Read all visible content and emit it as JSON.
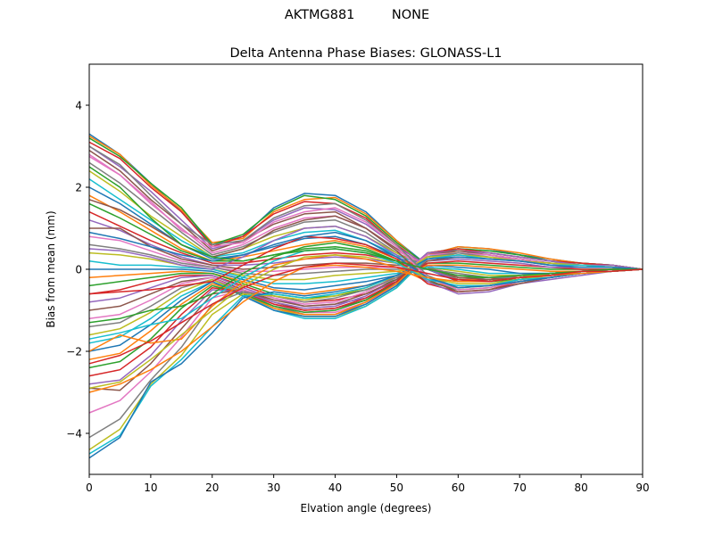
{
  "figure": {
    "suptitle": "AKTMG881         NONE"
  },
  "chart_data": {
    "type": "line",
    "title": "Delta Antenna Phase Biases: GLONASS-L1",
    "xlabel": "Elvation angle (degrees)",
    "ylabel": "Bias from mean (mm)",
    "xlim": [
      0,
      90
    ],
    "ylim": [
      -5,
      5
    ],
    "xticks": [
      0,
      10,
      20,
      30,
      40,
      50,
      60,
      70,
      80,
      90
    ],
    "yticks": [
      -4,
      -2,
      0,
      2,
      4
    ],
    "grid": false,
    "legend": "none",
    "x": [
      0,
      5,
      10,
      15,
      20,
      25,
      30,
      35,
      40,
      45,
      50,
      55,
      60,
      65,
      70,
      75,
      80,
      85,
      90
    ],
    "colors": [
      "#1f77b4",
      "#ff7f0e",
      "#2ca02c",
      "#d62728",
      "#9467bd",
      "#8c564b",
      "#e377c2",
      "#7f7f7f",
      "#bcbd22",
      "#17becf"
    ],
    "series": [
      {
        "values": [
          3.3,
          2.8,
          2.1,
          1.4,
          0.6,
          0.8,
          1.5,
          1.85,
          1.8,
          1.4,
          0.7,
          0.1,
          -0.3,
          -0.3,
          -0.2,
          -0.1,
          -0.05,
          -0.05,
          0
        ]
      },
      {
        "values": [
          3.25,
          2.8,
          2.05,
          1.45,
          0.65,
          0.75,
          1.4,
          1.7,
          1.75,
          1.35,
          0.7,
          0.05,
          -0.3,
          -0.25,
          -0.2,
          -0.15,
          -0.05,
          -0.05,
          0
        ]
      },
      {
        "values": [
          3.2,
          2.75,
          2.1,
          1.5,
          0.6,
          0.85,
          1.45,
          1.8,
          1.7,
          1.3,
          0.65,
          0.1,
          -0.25,
          -0.3,
          -0.25,
          -0.1,
          -0.05,
          0,
          0
        ]
      },
      {
        "values": [
          3.1,
          2.7,
          2.0,
          1.4,
          0.55,
          0.8,
          1.35,
          1.65,
          1.6,
          1.25,
          0.6,
          0.05,
          -0.3,
          -0.3,
          -0.2,
          -0.1,
          -0.1,
          -0.05,
          0
        ]
      },
      {
        "values": [
          3.0,
          2.5,
          1.9,
          1.2,
          0.5,
          0.7,
          1.2,
          1.5,
          1.45,
          1.1,
          0.55,
          0.1,
          -0.2,
          -0.25,
          -0.2,
          -0.15,
          -0.05,
          -0.05,
          0
        ]
      },
      {
        "values": [
          2.9,
          2.4,
          1.7,
          1.1,
          0.45,
          0.7,
          1.1,
          1.35,
          1.4,
          1.0,
          0.5,
          0.05,
          -0.25,
          -0.3,
          -0.2,
          -0.1,
          -0.1,
          -0.05,
          0
        ]
      },
      {
        "values": [
          2.75,
          2.3,
          1.6,
          1.0,
          0.4,
          0.6,
          1.0,
          1.25,
          1.3,
          1.0,
          0.45,
          0.1,
          -0.2,
          -0.25,
          -0.15,
          -0.1,
          -0.05,
          -0.05,
          0
        ]
      },
      {
        "values": [
          2.6,
          2.1,
          1.5,
          0.9,
          0.35,
          0.55,
          0.9,
          1.15,
          1.2,
          0.9,
          0.4,
          0.05,
          -0.2,
          -0.2,
          -0.2,
          -0.1,
          -0.05,
          0,
          0
        ]
      },
      {
        "values": [
          2.4,
          1.9,
          1.3,
          0.8,
          0.3,
          0.5,
          0.8,
          1.0,
          1.05,
          0.8,
          0.4,
          0.0,
          -0.25,
          -0.3,
          -0.15,
          -0.1,
          -0.05,
          -0.05,
          0
        ]
      },
      {
        "values": [
          2.2,
          1.7,
          1.2,
          0.7,
          0.3,
          0.4,
          0.7,
          0.9,
          0.95,
          0.7,
          0.35,
          0.05,
          -0.2,
          -0.25,
          -0.2,
          -0.1,
          -0.1,
          -0.05,
          0
        ]
      },
      {
        "values": [
          2.0,
          1.6,
          1.1,
          0.6,
          0.25,
          0.35,
          0.55,
          0.75,
          0.8,
          0.6,
          0.3,
          0.0,
          -0.3,
          -0.3,
          -0.2,
          -0.15,
          -0.05,
          -0.05,
          0
        ]
      },
      {
        "values": [
          1.8,
          1.4,
          0.95,
          0.5,
          0.2,
          0.3,
          0.45,
          0.6,
          0.7,
          0.55,
          0.25,
          0.05,
          -0.25,
          -0.25,
          -0.15,
          -0.1,
          -0.05,
          0,
          0
        ]
      },
      {
        "values": [
          1.6,
          1.25,
          0.85,
          0.45,
          0.2,
          0.2,
          0.35,
          0.5,
          0.55,
          0.45,
          0.2,
          0.0,
          -0.2,
          -0.2,
          -0.2,
          -0.1,
          -0.05,
          -0.05,
          0
        ]
      },
      {
        "values": [
          1.4,
          1.05,
          0.7,
          0.4,
          0.15,
          0.15,
          0.25,
          0.35,
          0.4,
          0.35,
          0.2,
          0.05,
          -0.3,
          -0.25,
          -0.15,
          -0.1,
          -0.1,
          -0.05,
          0
        ]
      },
      {
        "values": [
          1.2,
          0.95,
          0.6,
          0.3,
          0.1,
          0.1,
          0.15,
          0.25,
          0.3,
          0.25,
          0.15,
          0.0,
          -0.25,
          -0.3,
          -0.2,
          -0.15,
          -0.05,
          -0.05,
          0
        ]
      },
      {
        "values": [
          1.0,
          1.0,
          0.55,
          0.25,
          0.1,
          0.0,
          0.05,
          0.1,
          0.15,
          0.15,
          0.1,
          0.05,
          -0.2,
          -0.25,
          -0.2,
          -0.1,
          -0.05,
          0,
          0
        ]
      },
      {
        "values": [
          0.8,
          0.7,
          0.45,
          0.2,
          0.05,
          -0.05,
          -0.05,
          0.0,
          0.05,
          0.05,
          0.05,
          0.0,
          -0.15,
          -0.2,
          -0.15,
          -0.1,
          -0.05,
          -0.05,
          0
        ]
      },
      {
        "values": [
          0.6,
          0.5,
          0.35,
          0.15,
          0.05,
          -0.1,
          -0.15,
          -0.1,
          -0.05,
          0.0,
          0.0,
          0.0,
          -0.1,
          -0.2,
          -0.2,
          -0.1,
          -0.1,
          -0.05,
          0
        ]
      },
      {
        "values": [
          0.4,
          0.35,
          0.25,
          0.1,
          0.0,
          -0.15,
          -0.25,
          -0.25,
          -0.15,
          -0.1,
          -0.05,
          0.05,
          -0.05,
          -0.15,
          -0.15,
          -0.15,
          -0.05,
          -0.05,
          0
        ]
      },
      {
        "values": [
          0.2,
          0.1,
          0.1,
          0.05,
          0.0,
          -0.2,
          -0.35,
          -0.35,
          -0.3,
          -0.2,
          -0.1,
          0.05,
          0.0,
          -0.1,
          -0.1,
          -0.1,
          -0.05,
          0,
          0
        ]
      },
      {
        "values": [
          0.0,
          0.0,
          0.0,
          0.0,
          -0.05,
          -0.25,
          -0.45,
          -0.5,
          -0.4,
          -0.3,
          -0.15,
          0.1,
          0.05,
          0.0,
          -0.1,
          -0.1,
          -0.05,
          -0.05,
          0
        ]
      },
      {
        "values": [
          -0.2,
          -0.15,
          -0.1,
          -0.05,
          -0.1,
          -0.3,
          -0.5,
          -0.6,
          -0.5,
          -0.4,
          -0.2,
          0.1,
          0.1,
          0.05,
          0.0,
          -0.05,
          -0.05,
          -0.05,
          0
        ]
      },
      {
        "values": [
          -0.4,
          -0.3,
          -0.2,
          -0.1,
          -0.1,
          -0.35,
          -0.6,
          -0.7,
          -0.65,
          -0.5,
          -0.25,
          0.15,
          0.15,
          0.1,
          0.05,
          0.0,
          0.0,
          0,
          0
        ]
      },
      {
        "values": [
          -0.6,
          -0.5,
          -0.3,
          -0.15,
          -0.15,
          -0.4,
          -0.65,
          -0.8,
          -0.75,
          -0.6,
          -0.3,
          0.15,
          0.2,
          0.15,
          0.1,
          0.05,
          0.0,
          0,
          0
        ]
      },
      {
        "values": [
          -0.8,
          -0.7,
          -0.45,
          -0.2,
          -0.15,
          -0.45,
          -0.7,
          -0.9,
          -0.85,
          -0.7,
          -0.35,
          0.2,
          0.25,
          0.2,
          0.15,
          0.05,
          0.05,
          0.05,
          0
        ]
      },
      {
        "values": [
          -1.0,
          -0.9,
          -0.6,
          -0.3,
          -0.2,
          -0.5,
          -0.8,
          -1.0,
          -0.95,
          -0.75,
          -0.35,
          0.2,
          0.3,
          0.25,
          0.2,
          0.1,
          0.05,
          0.05,
          0
        ]
      },
      {
        "values": [
          -1.2,
          -1.1,
          -0.75,
          -0.35,
          -0.2,
          -0.55,
          -0.85,
          -1.05,
          -1.05,
          -0.8,
          -0.4,
          0.25,
          0.35,
          0.3,
          0.25,
          0.15,
          0.1,
          0.05,
          0
        ]
      },
      {
        "values": [
          -1.4,
          -1.3,
          -0.9,
          -0.45,
          -0.25,
          -0.55,
          -0.9,
          -1.1,
          -1.1,
          -0.85,
          -0.4,
          0.25,
          0.4,
          0.35,
          0.25,
          0.15,
          0.1,
          0.05,
          0
        ]
      },
      {
        "values": [
          -1.6,
          -1.45,
          -1.05,
          -0.55,
          -0.25,
          -0.6,
          -0.95,
          -1.15,
          -1.15,
          -0.9,
          -0.45,
          0.3,
          0.45,
          0.4,
          0.3,
          0.2,
          0.1,
          0.1,
          0
        ]
      },
      {
        "values": [
          -1.8,
          -1.65,
          -1.2,
          -0.65,
          -0.3,
          -0.6,
          -1.0,
          -1.2,
          -1.2,
          -0.9,
          -0.45,
          0.3,
          0.5,
          0.45,
          0.35,
          0.2,
          0.15,
          0.1,
          0
        ]
      },
      {
        "values": [
          -2.0,
          -1.85,
          -1.35,
          -0.75,
          -0.3,
          -0.65,
          -1.0,
          -1.15,
          -1.15,
          -0.85,
          -0.4,
          0.35,
          0.55,
          0.5,
          0.35,
          0.25,
          0.15,
          0.1,
          0
        ]
      },
      {
        "values": [
          -2.2,
          -2.05,
          -1.5,
          -0.85,
          -0.35,
          -0.6,
          -0.95,
          -1.1,
          -1.1,
          -0.8,
          -0.35,
          0.35,
          0.55,
          0.5,
          0.4,
          0.25,
          0.15,
          0.1,
          0
        ]
      },
      {
        "values": [
          -2.4,
          -2.25,
          -1.7,
          -0.95,
          -0.4,
          -0.6,
          -0.9,
          -1.05,
          -1.0,
          -0.75,
          -0.3,
          0.4,
          0.5,
          0.45,
          0.35,
          0.2,
          0.15,
          0.1,
          0
        ]
      },
      {
        "values": [
          -2.6,
          -2.45,
          -1.9,
          -1.1,
          -0.45,
          -0.55,
          -0.85,
          -1.0,
          -0.95,
          -0.7,
          -0.3,
          0.4,
          0.5,
          0.4,
          0.3,
          0.2,
          0.15,
          0.1,
          0
        ]
      },
      {
        "values": [
          -2.8,
          -2.7,
          -2.1,
          -1.25,
          -0.5,
          -0.55,
          -0.8,
          -0.95,
          -0.9,
          -0.65,
          -0.25,
          0.4,
          0.45,
          0.4,
          0.3,
          0.2,
          0.1,
          0.1,
          0
        ]
      },
      {
        "values": [
          -2.9,
          -2.95,
          -2.3,
          -1.45,
          -0.6,
          -0.5,
          -0.75,
          -0.9,
          -0.85,
          -0.6,
          -0.25,
          0.35,
          0.45,
          0.35,
          0.25,
          0.15,
          0.1,
          0.05,
          0
        ]
      },
      {
        "values": [
          -3.5,
          -3.2,
          -2.5,
          -1.65,
          -0.7,
          -0.5,
          -0.7,
          -0.85,
          -0.8,
          -0.55,
          -0.2,
          0.35,
          0.4,
          0.35,
          0.25,
          0.15,
          0.1,
          0.05,
          0
        ]
      },
      {
        "values": [
          -4.1,
          -3.65,
          -2.7,
          -1.9,
          -0.85,
          -0.55,
          -0.65,
          -0.8,
          -0.7,
          -0.5,
          -0.2,
          0.3,
          0.4,
          0.3,
          0.2,
          0.15,
          0.1,
          0.05,
          0
        ]
      },
      {
        "values": [
          -4.4,
          -3.9,
          -2.8,
          -2.1,
          -1.1,
          -0.6,
          -0.65,
          -0.75,
          -0.65,
          -0.45,
          -0.15,
          0.3,
          0.35,
          0.3,
          0.2,
          0.15,
          0.1,
          0.05,
          0
        ]
      },
      {
        "values": [
          -4.5,
          -4.05,
          -2.85,
          -2.2,
          -1.4,
          -0.65,
          -0.6,
          -0.7,
          -0.6,
          -0.45,
          -0.15,
          0.25,
          0.35,
          0.25,
          0.2,
          0.1,
          0.1,
          0.05,
          0
        ]
      },
      {
        "values": [
          -4.6,
          -4.1,
          -2.75,
          -2.3,
          -1.55,
          -0.7,
          -0.55,
          -0.65,
          -0.55,
          -0.4,
          -0.15,
          0.25,
          0.3,
          0.25,
          0.2,
          0.1,
          0.05,
          0.05,
          0
        ]
      },
      {
        "values": [
          -2.0,
          -1.6,
          -1.8,
          -1.7,
          -0.9,
          -0.3,
          0.1,
          0.25,
          0.35,
          0.25,
          0.05,
          -0.3,
          -0.45,
          -0.4,
          -0.25,
          -0.2,
          -0.1,
          -0.05,
          0
        ]
      },
      {
        "values": [
          -1.3,
          -1.2,
          -1.0,
          -0.9,
          -0.6,
          -0.1,
          0.3,
          0.55,
          0.65,
          0.5,
          0.2,
          -0.3,
          -0.5,
          -0.45,
          -0.3,
          -0.2,
          -0.1,
          -0.05,
          0
        ]
      },
      {
        "values": [
          -0.6,
          -0.55,
          -0.5,
          -0.4,
          -0.3,
          0.1,
          0.5,
          0.8,
          0.75,
          0.6,
          0.25,
          -0.35,
          -0.55,
          -0.5,
          -0.3,
          -0.2,
          -0.1,
          -0.05,
          0
        ]
      },
      {
        "values": [
          0.5,
          0.45,
          0.3,
          0.1,
          0.0,
          0.3,
          0.7,
          1.0,
          1.05,
          0.8,
          0.35,
          -0.3,
          -0.6,
          -0.55,
          -0.35,
          -0.25,
          -0.15,
          -0.05,
          0
        ]
      },
      {
        "values": [
          1.7,
          1.45,
          1.05,
          0.6,
          0.3,
          0.5,
          0.95,
          1.2,
          1.3,
          1.0,
          0.45,
          -0.25,
          -0.55,
          -0.5,
          -0.35,
          -0.2,
          -0.1,
          -0.05,
          0
        ]
      },
      {
        "values": [
          2.8,
          2.3,
          1.65,
          0.95,
          0.55,
          0.65,
          1.15,
          1.4,
          1.5,
          1.15,
          0.55,
          -0.2,
          -0.5,
          -0.45,
          -0.3,
          -0.2,
          -0.1,
          -0.05,
          0
        ]
      },
      {
        "values": [
          3.0,
          2.55,
          1.8,
          1.1,
          0.6,
          0.7,
          1.25,
          1.55,
          1.6,
          1.2,
          0.6,
          -0.15,
          -0.45,
          -0.4,
          -0.3,
          -0.2,
          -0.1,
          -0.05,
          0
        ]
      },
      {
        "values": [
          -2.9,
          -2.75,
          -2.2,
          -1.6,
          -1.0,
          -0.4,
          0.0,
          0.3,
          0.35,
          0.3,
          0.15,
          -0.2,
          -0.35,
          -0.35,
          -0.25,
          -0.15,
          -0.1,
          -0.05,
          0
        ]
      },
      {
        "values": [
          -1.7,
          -1.55,
          -1.35,
          -1.2,
          -0.7,
          -0.2,
          0.2,
          0.45,
          0.5,
          0.4,
          0.15,
          -0.25,
          -0.4,
          -0.4,
          -0.25,
          -0.2,
          -0.1,
          -0.05,
          0
        ]
      },
      {
        "values": [
          0.9,
          0.75,
          0.55,
          0.35,
          0.2,
          0.35,
          0.6,
          0.8,
          0.9,
          0.7,
          0.3,
          -0.2,
          -0.45,
          -0.4,
          -0.3,
          -0.2,
          -0.1,
          -0.05,
          0
        ]
      },
      {
        "values": [
          -3.0,
          -2.8,
          -2.45,
          -2.0,
          -1.4,
          -0.8,
          -0.3,
          0.05,
          0.1,
          0.05,
          -0.05,
          -0.2,
          -0.3,
          -0.3,
          -0.2,
          -0.15,
          -0.1,
          -0.05,
          0
        ]
      },
      {
        "values": [
          2.5,
          2.0,
          1.25,
          0.6,
          0.3,
          0.2,
          0.35,
          0.45,
          0.5,
          0.4,
          0.2,
          0.0,
          -0.15,
          -0.2,
          -0.15,
          -0.1,
          -0.05,
          0,
          0
        ]
      },
      {
        "values": [
          -2.3,
          -2.1,
          -1.75,
          -1.3,
          -0.85,
          -0.45,
          -0.15,
          0.05,
          0.15,
          0.1,
          0.05,
          -0.1,
          -0.25,
          -0.3,
          -0.2,
          -0.15,
          -0.05,
          -0.05,
          0
        ]
      }
    ]
  }
}
